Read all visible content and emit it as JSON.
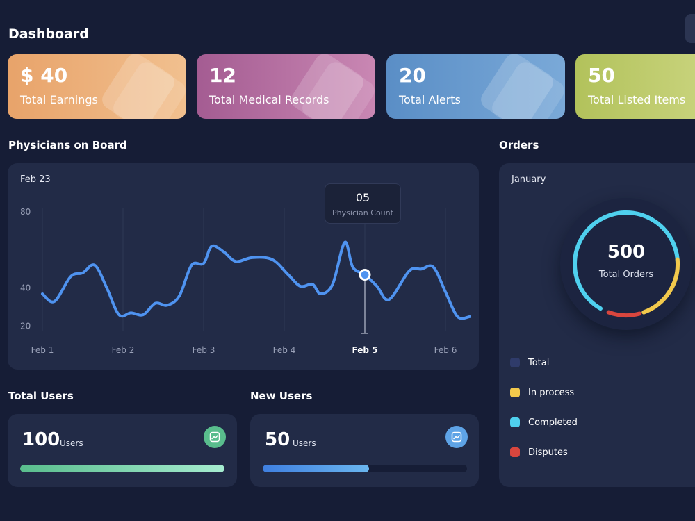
{
  "page_title": "Dashboard",
  "stat_cards": [
    {
      "value": "$ 40",
      "label": "Total Earnings",
      "color_from": "#e8a36a",
      "color_to": "#f1c08f"
    },
    {
      "value": "12",
      "label": "Total Medical Records",
      "color_from": "#a45c92",
      "color_to": "#c987b3"
    },
    {
      "value": "20",
      "label": "Total Alerts",
      "color_from": "#5a8ec6",
      "color_to": "#7aa9d8"
    },
    {
      "value": "50",
      "label": "Total Listed Items",
      "color_from": "#b2c25b",
      "color_to": "#c7d27a"
    }
  ],
  "physicians": {
    "title": "Physicians on Board",
    "period": "Feb 23",
    "tooltip": {
      "value": "05",
      "label": "Physician Count"
    },
    "active_tick": "Feb 5"
  },
  "chart_data": {
    "type": "line",
    "title": "",
    "xlabel": "",
    "ylabel": "",
    "x_ticks": [
      "Feb 1",
      "Feb 2",
      "Feb 3",
      "Feb 4",
      "Feb 5",
      "Feb 6"
    ],
    "y_ticks": [
      80,
      40,
      20
    ],
    "ylim": [
      10,
      80
    ],
    "grid": "vertical",
    "highlight": {
      "x": 4.0,
      "y": 47
    },
    "series": [
      {
        "color": "#4f93f0",
        "points": [
          [
            0.0,
            37
          ],
          [
            0.15,
            33
          ],
          [
            0.35,
            46
          ],
          [
            0.5,
            48
          ],
          [
            0.65,
            52
          ],
          [
            0.8,
            40
          ],
          [
            0.95,
            26
          ],
          [
            1.1,
            27
          ],
          [
            1.25,
            26
          ],
          [
            1.4,
            32
          ],
          [
            1.55,
            31
          ],
          [
            1.7,
            36
          ],
          [
            1.85,
            52
          ],
          [
            2.0,
            53
          ],
          [
            2.1,
            62
          ],
          [
            2.25,
            59
          ],
          [
            2.4,
            54
          ],
          [
            2.6,
            56
          ],
          [
            2.85,
            55
          ],
          [
            3.05,
            47
          ],
          [
            3.2,
            41
          ],
          [
            3.35,
            42
          ],
          [
            3.45,
            37
          ],
          [
            3.6,
            42
          ],
          [
            3.75,
            64
          ],
          [
            3.85,
            51
          ],
          [
            4.0,
            47
          ],
          [
            4.15,
            41
          ],
          [
            4.3,
            34
          ],
          [
            4.55,
            49
          ],
          [
            4.7,
            50
          ],
          [
            4.85,
            51
          ],
          [
            5.0,
            38
          ],
          [
            5.15,
            25
          ],
          [
            5.3,
            25
          ]
        ]
      }
    ]
  },
  "total_users": {
    "title": "Total Users",
    "value": "100",
    "unit": "Users",
    "progress": 1.0,
    "icon": "trend-up-icon",
    "icon_color": "#59bd8d",
    "bar_from": "#59bd8d",
    "bar_to": "#a6ecd0"
  },
  "new_users": {
    "title": "New Users",
    "value": "50",
    "unit": "Users",
    "progress": 0.52,
    "icon": "trend-up-icon",
    "icon_color": "#5ea3e6",
    "bar_from": "#3f7fe0",
    "bar_to": "#6ab6ef"
  },
  "orders": {
    "title": "Orders",
    "month": "January",
    "total_value": "500",
    "total_label": "Total Orders",
    "segments": [
      {
        "name": "Completed",
        "color": "#4fd0ee",
        "from_deg": 210,
        "to_deg": 450
      },
      {
        "name": "In process",
        "color": "#f2c94c",
        "from_deg": 85,
        "to_deg": 160
      },
      {
        "name": "Disputes",
        "color": "#d9463e",
        "from_deg": 165,
        "to_deg": 200
      }
    ],
    "legend": [
      {
        "label": "Total",
        "color": "#2f3b6a"
      },
      {
        "label": "In process",
        "color": "#f2c94c"
      },
      {
        "label": "Completed",
        "color": "#4fd0ee"
      },
      {
        "label": "Disputes",
        "color": "#d9463e"
      }
    ]
  }
}
